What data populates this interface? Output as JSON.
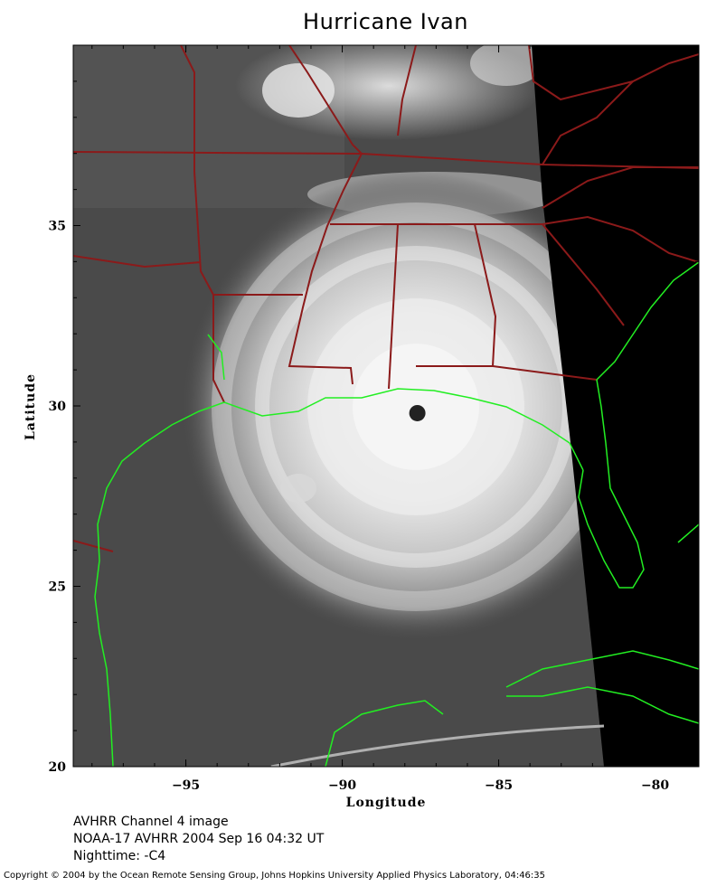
{
  "title": "Hurricane Ivan",
  "axes": {
    "xlabel": "Longitude",
    "ylabel": "Latitude",
    "x_ticks": [
      -95,
      -90,
      -85,
      -80
    ],
    "x_tick_labels": [
      "−95",
      "−90",
      "−85",
      "−80"
    ],
    "y_ticks": [
      20,
      25,
      30,
      35
    ],
    "y_tick_labels": [
      "20",
      "25",
      "30",
      "35"
    ],
    "lon_range": [
      -98.6,
      -78.6
    ],
    "lat_range": [
      20.0,
      40.0
    ]
  },
  "map_data": {
    "type": "satellite-image",
    "storm_eye": {
      "lon": -87.6,
      "lat": 29.8
    },
    "colors": {
      "coastline": "#22ee22",
      "state_borders": "#8b1a1a",
      "night_side": "#000000",
      "background": "#4a4a4a"
    }
  },
  "caption": {
    "line1": "AVHRR Channel 4 image",
    "line2": "NOAA-17 AVHRR 2004 Sep 16 04:32 UT",
    "line3": "Nighttime: -C4"
  },
  "copyright": "Copyright © 2004 by the Ocean Remote Sensing Group, Johns Hopkins University Applied Physics Laboratory, 04:46:35"
}
